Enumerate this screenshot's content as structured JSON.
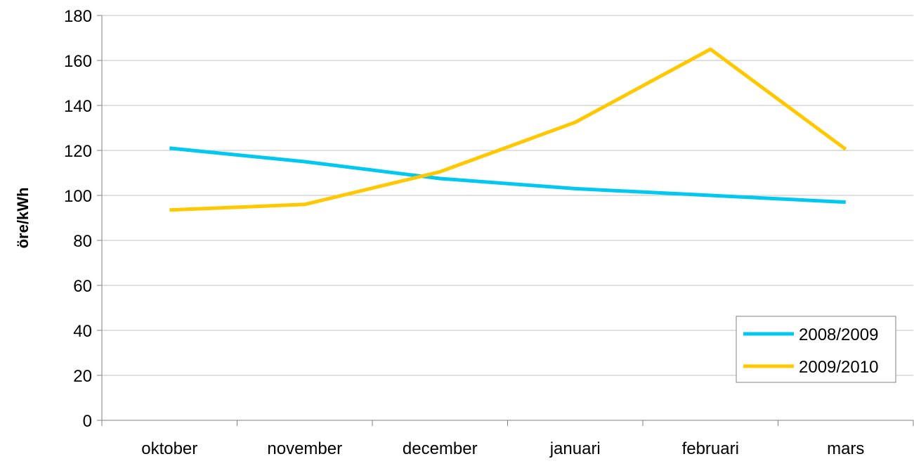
{
  "chart_data": {
    "type": "line",
    "categories": [
      "oktober",
      "november",
      "december",
      "januari",
      "februari",
      "mars"
    ],
    "series": [
      {
        "name": "2008/2009",
        "color": "#00C8F0",
        "values": [
          121,
          115,
          107.5,
          103,
          100,
          97
        ]
      },
      {
        "name": "2009/2010",
        "color": "#FFC800",
        "values": [
          93.5,
          96,
          110.5,
          132.5,
          165,
          120.5
        ]
      }
    ],
    "title": "",
    "xlabel": "",
    "ylabel": "öre/kWh",
    "ylim": [
      0,
      180
    ],
    "yticks": [
      0,
      20,
      40,
      60,
      80,
      100,
      120,
      140,
      160,
      180
    ],
    "grid": true,
    "legend_position": "bottom-right",
    "gridline_color": "#C0C0C0"
  }
}
